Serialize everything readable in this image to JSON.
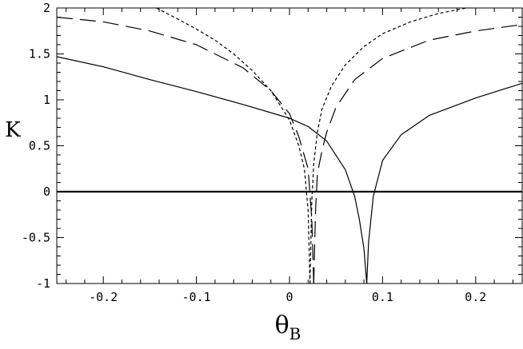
{
  "chart_data": {
    "type": "line",
    "title": "",
    "xlabel": "θ",
    "xlabel_subscript": "B",
    "ylabel": "K",
    "xlim": [
      -0.25,
      0.25
    ],
    "ylim": [
      -1,
      2
    ],
    "xticks": [
      -0.2,
      -0.1,
      0,
      0.1,
      0.2
    ],
    "xtick_labels": [
      "-0.2",
      "-0.1",
      "0",
      "0.1",
      "0.2"
    ],
    "yticks": [
      -1,
      -0.5,
      0,
      0.5,
      1,
      1.5,
      2
    ],
    "ytick_labels": [
      "-1",
      "-0.5",
      "0",
      "0.5",
      "1",
      "1.5",
      "2"
    ],
    "grid": false,
    "legend": "none",
    "series": [
      {
        "style": "solid",
        "color": "#000000",
        "segments": [
          {
            "x": [
              -0.25,
              -0.2,
              -0.15,
              -0.1,
              -0.05,
              0.0,
              0.02,
              0.04,
              0.06,
              0.07,
              0.075,
              0.08,
              0.083
            ],
            "y": [
              1.47,
              1.36,
              1.22,
              1.09,
              0.95,
              0.8,
              0.71,
              0.55,
              0.24,
              -0.05,
              -0.3,
              -0.62,
              -1.0
            ]
          },
          {
            "x": [
              0.083,
              0.085,
              0.09,
              0.1,
              0.12,
              0.15,
              0.2,
              0.25
            ],
            "y": [
              -1.0,
              -0.55,
              -0.05,
              0.34,
              0.62,
              0.83,
              1.02,
              1.18
            ]
          }
        ]
      },
      {
        "style": "long-dash",
        "color": "#000000",
        "segments": [
          {
            "x": [
              -0.25,
              -0.2,
              -0.15,
              -0.1,
              -0.05,
              -0.02,
              0.0,
              0.01,
              0.02,
              0.024,
              0.026
            ],
            "y": [
              1.9,
              1.85,
              1.75,
              1.6,
              1.35,
              1.1,
              0.85,
              0.6,
              0.25,
              -0.3,
              -1.0
            ]
          },
          {
            "x": [
              0.026,
              0.028,
              0.03,
              0.035,
              0.04,
              0.05,
              0.07,
              0.1,
              0.15,
              0.2,
              0.25
            ],
            "y": [
              -1.0,
              -0.2,
              0.2,
              0.45,
              0.65,
              0.92,
              1.22,
              1.45,
              1.65,
              1.75,
              1.82
            ]
          }
        ]
      },
      {
        "style": "short-dash",
        "color": "#000000",
        "segments": [
          {
            "x": [
              -0.143,
              -0.12,
              -0.1,
              -0.08,
              -0.06,
              -0.04,
              -0.02,
              0.0,
              0.01,
              0.016,
              0.02,
              0.022
            ],
            "y": [
              2.0,
              1.88,
              1.77,
              1.65,
              1.5,
              1.32,
              1.1,
              0.78,
              0.5,
              0.25,
              -0.2,
              -1.0
            ]
          },
          {
            "x": [
              0.022,
              0.024,
              0.026,
              0.03,
              0.035,
              0.045,
              0.06,
              0.08,
              0.1,
              0.13,
              0.16,
              0.19
            ],
            "y": [
              -1.0,
              -0.1,
              0.3,
              0.65,
              0.9,
              1.15,
              1.38,
              1.58,
              1.72,
              1.85,
              1.94,
              2.0
            ]
          }
        ]
      },
      {
        "style": "solid-thick",
        "color": "#000000",
        "segments": [
          {
            "x": [
              -0.25,
              0.25
            ],
            "y": [
              0,
              0
            ]
          }
        ]
      }
    ]
  }
}
